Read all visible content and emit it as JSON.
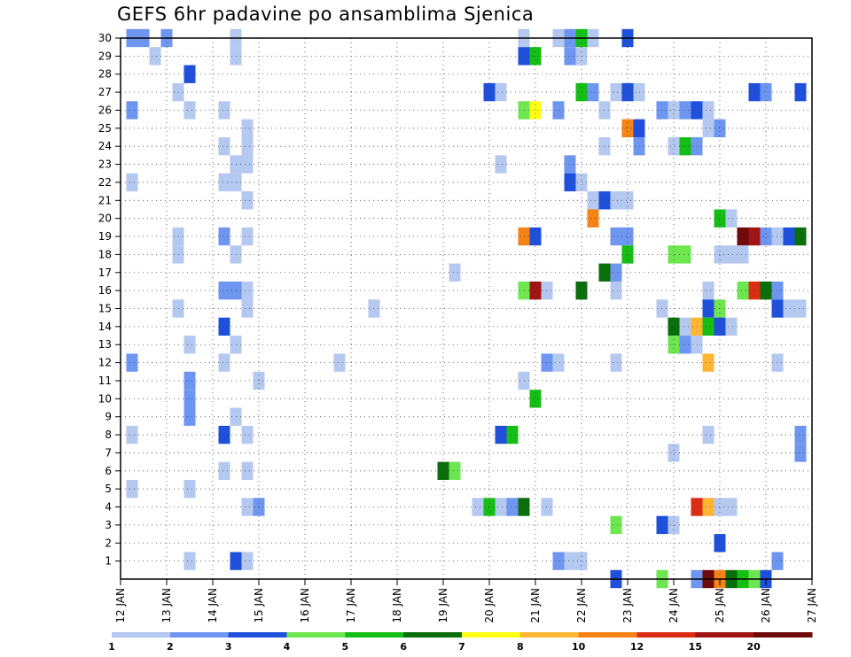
{
  "chart_data": {
    "type": "heatmap",
    "title": "GEFS 6hr padavine po ansamblima Sjenica",
    "xlabel": "",
    "ylabel": "",
    "x_ticks": [
      "12 JAN",
      "13 JAN",
      "14 JAN",
      "15 JAN",
      "16 JAN",
      "17 JAN",
      "18 JAN",
      "19 JAN",
      "20 JAN",
      "21 JAN",
      "22 JAN",
      "23 JAN",
      "24 JAN",
      "25 JAN",
      "26 JAN",
      "27 JAN"
    ],
    "x_range_days": [
      12,
      27
    ],
    "time_step_hours": 6,
    "y_ticks": [
      1,
      2,
      3,
      4,
      5,
      6,
      7,
      8,
      9,
      10,
      11,
      12,
      13,
      14,
      15,
      16,
      17,
      18,
      19,
      20,
      21,
      22,
      23,
      24,
      25,
      26,
      27,
      28,
      29,
      30
    ],
    "y_range": [
      0,
      30
    ],
    "grid": "dotted",
    "colorbar": {
      "boundaries": [
        1,
        2,
        3,
        4,
        5,
        6,
        7,
        8,
        10,
        12,
        15,
        20
      ],
      "colors": [
        "#b4c8f0",
        "#6e96f0",
        "#1e50dc",
        "#6ee650",
        "#14be14",
        "#0a6e0a",
        "#ffff14",
        "#ffb432",
        "#f58214",
        "#dc2d14",
        "#a01414",
        "#6e0a0a"
      ]
    },
    "palette": [
      "#b4c8f0",
      "#6e96f0",
      "#1e50dc",
      "#6ee650",
      "#14be14",
      "#0a6e0a",
      "#ffff14",
      "#ffb432",
      "#f58214",
      "#dc2d14",
      "#a01414",
      "#6e0a0a"
    ],
    "cells": [
      {
        "t": 12.5,
        "m": 30,
        "c": 1
      },
      {
        "t": 13.0,
        "m": 30,
        "c": 1
      },
      {
        "t": 12.75,
        "m": 29,
        "c": 0
      },
      {
        "t": 12.25,
        "m": 30,
        "c": 1
      },
      {
        "t": 14.5,
        "m": 30,
        "c": 0
      },
      {
        "t": 14.5,
        "m": 29,
        "c": 0
      },
      {
        "t": 20.75,
        "m": 30,
        "c": 0
      },
      {
        "t": 21.5,
        "m": 30,
        "c": 0
      },
      {
        "t": 21.75,
        "m": 30,
        "c": 1
      },
      {
        "t": 22.0,
        "m": 30,
        "c": 4
      },
      {
        "t": 22.25,
        "m": 30,
        "c": 0
      },
      {
        "t": 23.0,
        "m": 30,
        "c": 2
      },
      {
        "t": 20.75,
        "m": 29,
        "c": 2
      },
      {
        "t": 21.0,
        "m": 29,
        "c": 4
      },
      {
        "t": 21.75,
        "m": 29,
        "c": 1
      },
      {
        "t": 22.0,
        "m": 29,
        "c": 0
      },
      {
        "t": 13.5,
        "m": 28,
        "c": 2
      },
      {
        "t": 13.25,
        "m": 27,
        "c": 0
      },
      {
        "t": 20.0,
        "m": 27,
        "c": 2
      },
      {
        "t": 20.25,
        "m": 27,
        "c": 0
      },
      {
        "t": 22.0,
        "m": 27,
        "c": 4
      },
      {
        "t": 22.25,
        "m": 27,
        "c": 1
      },
      {
        "t": 22.75,
        "m": 27,
        "c": 0
      },
      {
        "t": 23.0,
        "m": 27,
        "c": 2
      },
      {
        "t": 23.25,
        "m": 27,
        "c": 0
      },
      {
        "t": 25.75,
        "m": 27,
        "c": 2
      },
      {
        "t": 26.0,
        "m": 27,
        "c": 1
      },
      {
        "t": 26.75,
        "m": 27,
        "c": 2
      },
      {
        "t": 12.25,
        "m": 26,
        "c": 1
      },
      {
        "t": 13.5,
        "m": 26,
        "c": 0
      },
      {
        "t": 14.25,
        "m": 26,
        "c": 0
      },
      {
        "t": 20.75,
        "m": 26,
        "c": 3
      },
      {
        "t": 21.0,
        "m": 26,
        "c": 6
      },
      {
        "t": 21.5,
        "m": 26,
        "c": 1
      },
      {
        "t": 22.5,
        "m": 26,
        "c": 0
      },
      {
        "t": 23.75,
        "m": 26,
        "c": 1
      },
      {
        "t": 24.0,
        "m": 26,
        "c": 0
      },
      {
        "t": 24.25,
        "m": 26,
        "c": 1
      },
      {
        "t": 24.5,
        "m": 26,
        "c": 2
      },
      {
        "t": 24.75,
        "m": 26,
        "c": 0
      },
      {
        "t": 14.75,
        "m": 25,
        "c": 0
      },
      {
        "t": 23.0,
        "m": 25,
        "c": 8
      },
      {
        "t": 23.25,
        "m": 25,
        "c": 2
      },
      {
        "t": 24.75,
        "m": 25,
        "c": 0
      },
      {
        "t": 25.0,
        "m": 25,
        "c": 1
      },
      {
        "t": 14.25,
        "m": 24,
        "c": 0
      },
      {
        "t": 14.75,
        "m": 24,
        "c": 0
      },
      {
        "t": 22.5,
        "m": 24,
        "c": 0
      },
      {
        "t": 23.25,
        "m": 24,
        "c": 1
      },
      {
        "t": 24.0,
        "m": 24,
        "c": 0
      },
      {
        "t": 24.25,
        "m": 24,
        "c": 4
      },
      {
        "t": 24.5,
        "m": 24,
        "c": 1
      },
      {
        "t": 14.5,
        "m": 23,
        "c": 0
      },
      {
        "t": 14.75,
        "m": 23,
        "c": 0
      },
      {
        "t": 20.25,
        "m": 23,
        "c": 0
      },
      {
        "t": 21.75,
        "m": 23,
        "c": 1
      },
      {
        "t": 12.25,
        "m": 22,
        "c": 0
      },
      {
        "t": 14.25,
        "m": 22,
        "c": 0
      },
      {
        "t": 14.5,
        "m": 22,
        "c": 0
      },
      {
        "t": 21.75,
        "m": 22,
        "c": 2
      },
      {
        "t": 22.0,
        "m": 22,
        "c": 0
      },
      {
        "t": 14.75,
        "m": 21,
        "c": 0
      },
      {
        "t": 22.25,
        "m": 21,
        "c": 0
      },
      {
        "t": 22.5,
        "m": 21,
        "c": 2
      },
      {
        "t": 22.75,
        "m": 21,
        "c": 0
      },
      {
        "t": 23.0,
        "m": 21,
        "c": 0
      },
      {
        "t": 22.25,
        "m": 20,
        "c": 8
      },
      {
        "t": 25.0,
        "m": 20,
        "c": 4
      },
      {
        "t": 25.25,
        "m": 20,
        "c": 0
      },
      {
        "t": 13.25,
        "m": 19,
        "c": 0
      },
      {
        "t": 14.25,
        "m": 19,
        "c": 1
      },
      {
        "t": 14.75,
        "m": 19,
        "c": 0
      },
      {
        "t": 20.75,
        "m": 19,
        "c": 8
      },
      {
        "t": 21.0,
        "m": 19,
        "c": 2
      },
      {
        "t": 22.75,
        "m": 19,
        "c": 1
      },
      {
        "t": 23.0,
        "m": 19,
        "c": 1
      },
      {
        "t": 25.5,
        "m": 19,
        "c": 11
      },
      {
        "t": 25.75,
        "m": 19,
        "c": 10
      },
      {
        "t": 26.0,
        "m": 19,
        "c": 1
      },
      {
        "t": 26.25,
        "m": 19,
        "c": 0
      },
      {
        "t": 26.5,
        "m": 19,
        "c": 2
      },
      {
        "t": 26.75,
        "m": 19,
        "c": 5
      },
      {
        "t": 13.25,
        "m": 18,
        "c": 0
      },
      {
        "t": 14.5,
        "m": 18,
        "c": 0
      },
      {
        "t": 23.0,
        "m": 18,
        "c": 4
      },
      {
        "t": 24.0,
        "m": 18,
        "c": 3
      },
      {
        "t": 24.25,
        "m": 18,
        "c": 3
      },
      {
        "t": 25.0,
        "m": 18,
        "c": 0
      },
      {
        "t": 25.25,
        "m": 18,
        "c": 0
      },
      {
        "t": 25.5,
        "m": 18,
        "c": 0
      },
      {
        "t": 19.25,
        "m": 17,
        "c": 0
      },
      {
        "t": 22.5,
        "m": 17,
        "c": 5
      },
      {
        "t": 22.75,
        "m": 17,
        "c": 1
      },
      {
        "t": 14.25,
        "m": 16,
        "c": 1
      },
      {
        "t": 14.5,
        "m": 16,
        "c": 1
      },
      {
        "t": 14.75,
        "m": 16,
        "c": 0
      },
      {
        "t": 20.75,
        "m": 16,
        "c": 3
      },
      {
        "t": 21.0,
        "m": 16,
        "c": 10
      },
      {
        "t": 21.25,
        "m": 16,
        "c": 0
      },
      {
        "t": 22.0,
        "m": 16,
        "c": 5
      },
      {
        "t": 22.75,
        "m": 16,
        "c": 0
      },
      {
        "t": 24.75,
        "m": 16,
        "c": 0
      },
      {
        "t": 25.5,
        "m": 16,
        "c": 3
      },
      {
        "t": 25.75,
        "m": 16,
        "c": 9
      },
      {
        "t": 26.0,
        "m": 16,
        "c": 5
      },
      {
        "t": 26.25,
        "m": 16,
        "c": 1
      },
      {
        "t": 13.25,
        "m": 15,
        "c": 0
      },
      {
        "t": 14.75,
        "m": 15,
        "c": 0
      },
      {
        "t": 17.5,
        "m": 15,
        "c": 0
      },
      {
        "t": 23.75,
        "m": 15,
        "c": 0
      },
      {
        "t": 24.75,
        "m": 15,
        "c": 2
      },
      {
        "t": 25.0,
        "m": 15,
        "c": 3
      },
      {
        "t": 26.25,
        "m": 15,
        "c": 2
      },
      {
        "t": 26.5,
        "m": 15,
        "c": 0
      },
      {
        "t": 26.75,
        "m": 15,
        "c": 0
      },
      {
        "t": 14.25,
        "m": 14,
        "c": 2
      },
      {
        "t": 24.0,
        "m": 14,
        "c": 5
      },
      {
        "t": 24.25,
        "m": 14,
        "c": 0
      },
      {
        "t": 24.5,
        "m": 14,
        "c": 7
      },
      {
        "t": 24.75,
        "m": 14,
        "c": 4
      },
      {
        "t": 25.0,
        "m": 14,
        "c": 2
      },
      {
        "t": 25.25,
        "m": 14,
        "c": 0
      },
      {
        "t": 13.5,
        "m": 13,
        "c": 0
      },
      {
        "t": 14.5,
        "m": 13,
        "c": 0
      },
      {
        "t": 24.0,
        "m": 13,
        "c": 3
      },
      {
        "t": 24.25,
        "m": 13,
        "c": 1
      },
      {
        "t": 24.5,
        "m": 13,
        "c": 0
      },
      {
        "t": 12.25,
        "m": 12,
        "c": 1
      },
      {
        "t": 14.25,
        "m": 12,
        "c": 0
      },
      {
        "t": 16.75,
        "m": 12,
        "c": 0
      },
      {
        "t": 21.25,
        "m": 12,
        "c": 1
      },
      {
        "t": 21.5,
        "m": 12,
        "c": 0
      },
      {
        "t": 22.75,
        "m": 12,
        "c": 0
      },
      {
        "t": 24.75,
        "m": 12,
        "c": 7
      },
      {
        "t": 26.25,
        "m": 12,
        "c": 0
      },
      {
        "t": 13.5,
        "m": 11,
        "c": 1
      },
      {
        "t": 15.0,
        "m": 11,
        "c": 0
      },
      {
        "t": 20.75,
        "m": 11,
        "c": 0
      },
      {
        "t": 13.5,
        "m": 10,
        "c": 1
      },
      {
        "t": 21.0,
        "m": 10,
        "c": 4
      },
      {
        "t": 14.5,
        "m": 9,
        "c": 0
      },
      {
        "t": 13.5,
        "m": 9,
        "c": 1
      },
      {
        "t": 12.25,
        "m": 8,
        "c": 0
      },
      {
        "t": 14.25,
        "m": 8,
        "c": 2
      },
      {
        "t": 14.75,
        "m": 8,
        "c": 0
      },
      {
        "t": 20.25,
        "m": 8,
        "c": 2
      },
      {
        "t": 20.5,
        "m": 8,
        "c": 4
      },
      {
        "t": 24.75,
        "m": 8,
        "c": 0
      },
      {
        "t": 26.75,
        "m": 8,
        "c": 1
      },
      {
        "t": 24.0,
        "m": 7,
        "c": 0
      },
      {
        "t": 26.75,
        "m": 7,
        "c": 1
      },
      {
        "t": 14.25,
        "m": 6,
        "c": 0
      },
      {
        "t": 14.75,
        "m": 6,
        "c": 0
      },
      {
        "t": 19.0,
        "m": 6,
        "c": 5
      },
      {
        "t": 19.25,
        "m": 6,
        "c": 3
      },
      {
        "t": 12.25,
        "m": 5,
        "c": 0
      },
      {
        "t": 13.5,
        "m": 5,
        "c": 0
      },
      {
        "t": 14.75,
        "m": 4,
        "c": 0
      },
      {
        "t": 15.0,
        "m": 4,
        "c": 1
      },
      {
        "t": 19.75,
        "m": 4,
        "c": 0
      },
      {
        "t": 20.0,
        "m": 4,
        "c": 4
      },
      {
        "t": 20.25,
        "m": 4,
        "c": 0
      },
      {
        "t": 20.5,
        "m": 4,
        "c": 1
      },
      {
        "t": 20.75,
        "m": 4,
        "c": 5
      },
      {
        "t": 21.25,
        "m": 4,
        "c": 0
      },
      {
        "t": 24.5,
        "m": 4,
        "c": 9
      },
      {
        "t": 24.75,
        "m": 4,
        "c": 7
      },
      {
        "t": 25.0,
        "m": 4,
        "c": 0
      },
      {
        "t": 25.25,
        "m": 4,
        "c": 0
      },
      {
        "t": 22.75,
        "m": 3,
        "c": 3
      },
      {
        "t": 23.75,
        "m": 3,
        "c": 2
      },
      {
        "t": 24.0,
        "m": 3,
        "c": 0
      },
      {
        "t": 25.0,
        "m": 2,
        "c": 2
      },
      {
        "t": 13.5,
        "m": 1,
        "c": 0
      },
      {
        "t": 14.5,
        "m": 1,
        "c": 2
      },
      {
        "t": 14.75,
        "m": 1,
        "c": 0
      },
      {
        "t": 21.5,
        "m": 1,
        "c": 1
      },
      {
        "t": 21.75,
        "m": 1,
        "c": 0
      },
      {
        "t": 22.0,
        "m": 1,
        "c": 0
      },
      {
        "t": 26.25,
        "m": 1,
        "c": 1
      },
      {
        "t": 22.75,
        "m": 0,
        "c": 2
      },
      {
        "t": 23.75,
        "m": 0,
        "c": 3
      },
      {
        "t": 24.5,
        "m": 0,
        "c": 1
      },
      {
        "t": 24.75,
        "m": 0,
        "c": 11
      },
      {
        "t": 25.0,
        "m": 0,
        "c": 8
      },
      {
        "t": 25.25,
        "m": 0,
        "c": 5
      },
      {
        "t": 25.5,
        "m": 0,
        "c": 4
      },
      {
        "t": 25.75,
        "m": 0,
        "c": 3
      },
      {
        "t": 26.0,
        "m": 0,
        "c": 2
      }
    ]
  }
}
